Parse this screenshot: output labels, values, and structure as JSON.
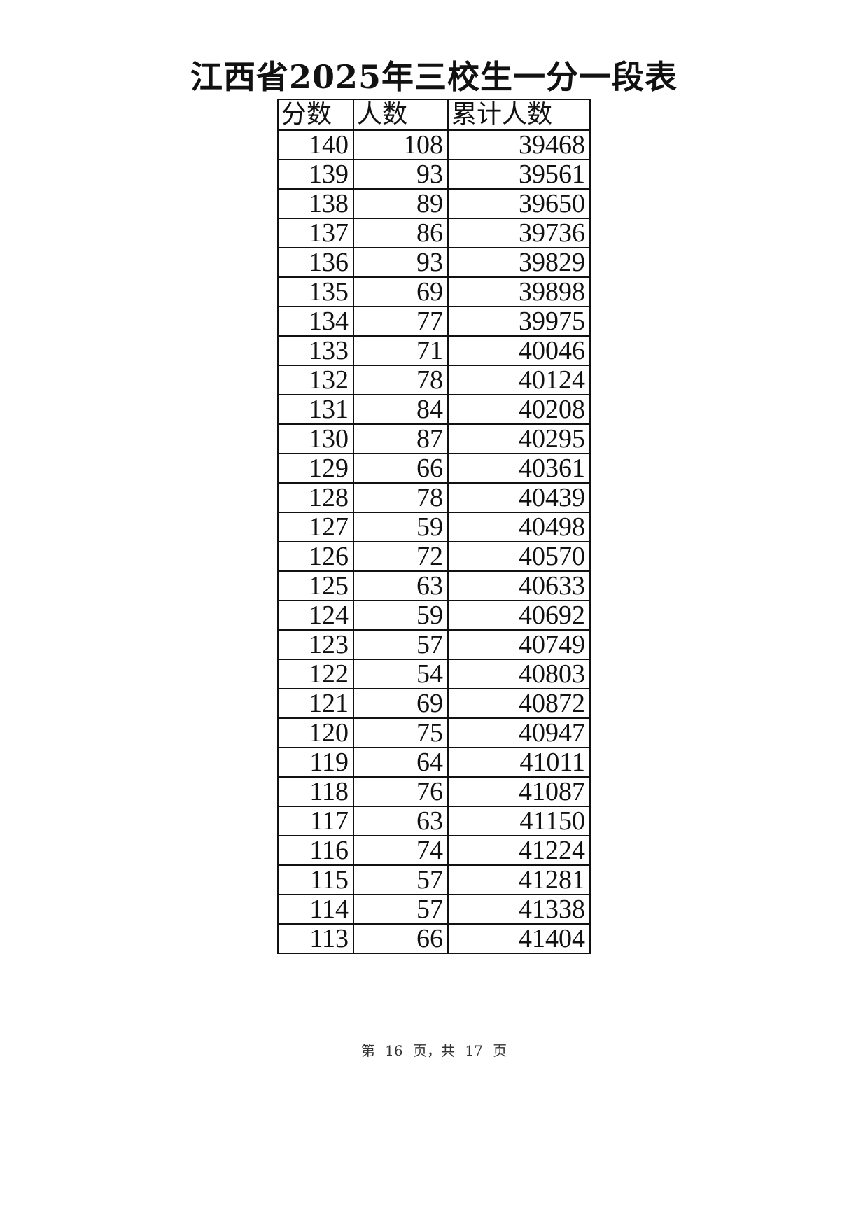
{
  "title": "江西省2025年三校生一分一段表",
  "table": {
    "headers": [
      "分数",
      "人数",
      "累计人数"
    ],
    "rows": [
      [
        "140",
        "108",
        "39468"
      ],
      [
        "139",
        "93",
        "39561"
      ],
      [
        "138",
        "89",
        "39650"
      ],
      [
        "137",
        "86",
        "39736"
      ],
      [
        "136",
        "93",
        "39829"
      ],
      [
        "135",
        "69",
        "39898"
      ],
      [
        "134",
        "77",
        "39975"
      ],
      [
        "133",
        "71",
        "40046"
      ],
      [
        "132",
        "78",
        "40124"
      ],
      [
        "131",
        "84",
        "40208"
      ],
      [
        "130",
        "87",
        "40295"
      ],
      [
        "129",
        "66",
        "40361"
      ],
      [
        "128",
        "78",
        "40439"
      ],
      [
        "127",
        "59",
        "40498"
      ],
      [
        "126",
        "72",
        "40570"
      ],
      [
        "125",
        "63",
        "40633"
      ],
      [
        "124",
        "59",
        "40692"
      ],
      [
        "123",
        "57",
        "40749"
      ],
      [
        "122",
        "54",
        "40803"
      ],
      [
        "121",
        "69",
        "40872"
      ],
      [
        "120",
        "75",
        "40947"
      ],
      [
        "119",
        "64",
        "41011"
      ],
      [
        "118",
        "76",
        "41087"
      ],
      [
        "117",
        "63",
        "41150"
      ],
      [
        "116",
        "74",
        "41224"
      ],
      [
        "115",
        "57",
        "41281"
      ],
      [
        "114",
        "57",
        "41338"
      ],
      [
        "113",
        "66",
        "41404"
      ]
    ]
  },
  "footer": "第 16 页，共 17 页"
}
